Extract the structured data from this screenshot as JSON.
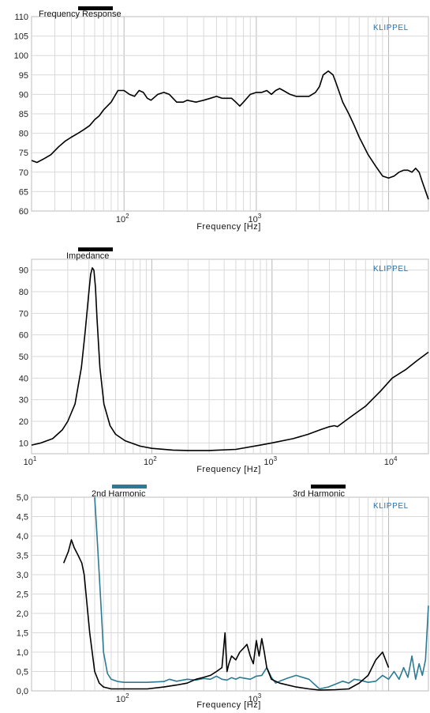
{
  "brand": {
    "label": "KLIPPEL",
    "color": "#2a6fa8"
  },
  "chart_data": [
    {
      "type": "line",
      "title": "Frequency Response",
      "xlabel": "Frequency  [Hz]",
      "ylabel": "",
      "xscale": "log",
      "xlim": [
        20,
        20000
      ],
      "ylim": [
        60,
        110
      ],
      "yticks": [
        "60",
        "65",
        "70",
        "75",
        "80",
        "85",
        "90",
        "95",
        "100",
        "105",
        "110"
      ],
      "xticks": [
        {
          "value": 100,
          "label": "10",
          "sup": "2"
        },
        {
          "value": 1000,
          "label": "10",
          "sup": "3"
        }
      ],
      "grid": true,
      "series": [
        {
          "color": "#000000",
          "x": [
            20,
            22,
            25,
            28,
            32,
            36,
            40,
            45,
            50,
            55,
            60,
            65,
            70,
            80,
            90,
            100,
            110,
            120,
            130,
            140,
            150,
            160,
            180,
            200,
            220,
            250,
            280,
            300,
            350,
            400,
            450,
            500,
            550,
            600,
            650,
            700,
            750,
            800,
            900,
            1000,
            1100,
            1200,
            1300,
            1400,
            1500,
            1600,
            1800,
            2000,
            2200,
            2500,
            2800,
            3000,
            3200,
            3500,
            3800,
            4000,
            4500,
            5000,
            5500,
            6000,
            7000,
            8000,
            9000,
            10000,
            11000,
            12000,
            13000,
            14000,
            15000,
            16000,
            17000,
            18000,
            20000
          ],
          "y": [
            73,
            72.5,
            73.5,
            74.5,
            76.5,
            78,
            79,
            80,
            81,
            82,
            83.5,
            84.5,
            86,
            88,
            91,
            91,
            90,
            89.5,
            91,
            90.5,
            89,
            88.5,
            90,
            90.5,
            90,
            88,
            88,
            88.5,
            88,
            88.5,
            89,
            89.5,
            89,
            89,
            89,
            88,
            87,
            88,
            90,
            90.5,
            90.5,
            91,
            90,
            91,
            91.5,
            91,
            90,
            89.5,
            89.5,
            89.5,
            90.5,
            92,
            95,
            96,
            95,
            93,
            88,
            85,
            82,
            79,
            74.5,
            71.5,
            69,
            68.5,
            69,
            70,
            70.5,
            70.5,
            70,
            71,
            70,
            67.5,
            63
          ]
        }
      ]
    },
    {
      "type": "line",
      "title": "Impedance",
      "xlabel": "Frequency  [Hz]",
      "ylabel": "",
      "xscale": "log",
      "xlim": [
        10,
        20000
      ],
      "ylim": [
        5,
        95
      ],
      "yticks": [
        "10",
        "20",
        "30",
        "40",
        "50",
        "60",
        "70",
        "80",
        "90"
      ],
      "xticks": [
        {
          "value": 10,
          "label": "10",
          "sup": "1"
        },
        {
          "value": 100,
          "label": "10",
          "sup": "2"
        },
        {
          "value": 1000,
          "label": "10",
          "sup": "3"
        },
        {
          "value": 10000,
          "label": "10",
          "sup": "4"
        }
      ],
      "grid": true,
      "series": [
        {
          "color": "#000000",
          "x": [
            10,
            12,
            15,
            18,
            20,
            23,
            26,
            28,
            30,
            31,
            32,
            33,
            34,
            35,
            37,
            40,
            45,
            50,
            60,
            80,
            100,
            150,
            200,
            300,
            500,
            800,
            1000,
            1500,
            2000,
            2500,
            3000,
            3300,
            3500,
            3800,
            4500,
            6000,
            8000,
            10000,
            13000,
            16000,
            20000
          ],
          "y": [
            9,
            10,
            12,
            16,
            20,
            28,
            45,
            62,
            80,
            88,
            91,
            90,
            82,
            68,
            45,
            28,
            18,
            14,
            11,
            8.5,
            7.5,
            6.7,
            6.5,
            6.5,
            7,
            9,
            10,
            12,
            14,
            16,
            17.5,
            18,
            17.5,
            19,
            22,
            27,
            34,
            40,
            44,
            48,
            52
          ]
        }
      ]
    },
    {
      "type": "line",
      "title": "",
      "xlabel": "Frequency  [Hz]",
      "ylabel": "",
      "xscale": "log",
      "xlim": [
        20,
        20000
      ],
      "ylim": [
        0,
        5
      ],
      "yticks": [
        "0,0",
        "0,5",
        "1,0",
        "1,5",
        "2,0",
        "2,5",
        "3,0",
        "3,5",
        "4,0",
        "4,5",
        "5,0"
      ],
      "xticks": [
        {
          "value": 100,
          "label": "10",
          "sup": "2"
        },
        {
          "value": 1000,
          "label": "10",
          "sup": "3"
        }
      ],
      "grid": true,
      "series": [
        {
          "name": "2nd Harmonic",
          "color": "#2c7a93",
          "x": [
            60,
            62,
            65,
            68,
            70,
            75,
            80,
            90,
            100,
            120,
            150,
            200,
            220,
            250,
            300,
            350,
            400,
            450,
            500,
            550,
            600,
            650,
            700,
            750,
            800,
            900,
            1000,
            1100,
            1200,
            1300,
            1400,
            1500,
            1700,
            2000,
            2500,
            3000,
            3500,
            4000,
            4500,
            5000,
            5500,
            6000,
            7000,
            8000,
            9000,
            10000,
            11000,
            12000,
            13000,
            14000,
            15000,
            16000,
            17000,
            18000,
            19000,
            20000
          ],
          "y": [
            5.0,
            4.2,
            3.0,
            1.8,
            1.0,
            0.45,
            0.3,
            0.24,
            0.22,
            0.22,
            0.22,
            0.24,
            0.3,
            0.25,
            0.3,
            0.28,
            0.32,
            0.3,
            0.38,
            0.3,
            0.28,
            0.34,
            0.3,
            0.35,
            0.33,
            0.3,
            0.38,
            0.4,
            0.6,
            0.35,
            0.2,
            0.25,
            0.32,
            0.4,
            0.3,
            0.05,
            0.1,
            0.18,
            0.25,
            0.2,
            0.3,
            0.28,
            0.22,
            0.25,
            0.4,
            0.3,
            0.5,
            0.3,
            0.6,
            0.35,
            0.9,
            0.3,
            0.7,
            0.4,
            0.8,
            2.2
          ]
        },
        {
          "name": "3rd Harmonic",
          "color": "#000000",
          "x": [
            35,
            38,
            40,
            42,
            45,
            48,
            50,
            55,
            60,
            65,
            70,
            80,
            90,
            100,
            120,
            150,
            200,
            250,
            300,
            350,
            400,
            450,
            500,
            550,
            580,
            600,
            620,
            650,
            700,
            750,
            800,
            850,
            900,
            950,
            1000,
            1050,
            1100,
            1150,
            1200,
            1300,
            1500,
            2000,
            2500,
            3000,
            4000,
            5000,
            6000,
            7000,
            8000,
            9000,
            10000
          ],
          "y": [
            3.3,
            3.6,
            3.9,
            3.7,
            3.5,
            3.3,
            3.0,
            1.5,
            0.5,
            0.2,
            0.1,
            0.05,
            0.05,
            0.05,
            0.05,
            0.05,
            0.1,
            0.15,
            0.2,
            0.3,
            0.35,
            0.4,
            0.5,
            0.6,
            1.5,
            0.5,
            0.7,
            0.9,
            0.8,
            1.0,
            1.1,
            1.2,
            0.9,
            0.7,
            1.3,
            0.9,
            1.35,
            1.0,
            0.6,
            0.3,
            0.2,
            0.1,
            0.05,
            0.02,
            0.03,
            0.05,
            0.2,
            0.4,
            0.8,
            1.0,
            0.6
          ]
        }
      ]
    }
  ]
}
